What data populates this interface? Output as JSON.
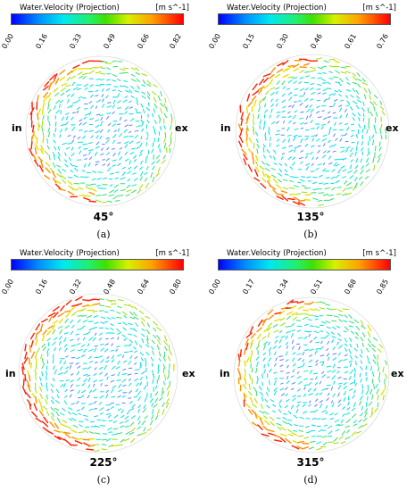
{
  "panels": [
    {
      "title": "Water.Velocity (Projection)",
      "units": "[m s^-1]",
      "ticks": [
        "0.00",
        "0.16",
        "0.33",
        "0.49",
        "0.66",
        "0.82"
      ],
      "inlet_label": "in",
      "exit_label": "ex",
      "angle_label": "45°",
      "sublabel": "(a)"
    },
    {
      "title": "Water.Velocity (Projection)",
      "units": "[m s^-1]",
      "ticks": [
        "0.00",
        "0.15",
        "0.30",
        "0.46",
        "0.61",
        "0.76"
      ],
      "inlet_label": "in",
      "exit_label": "ex",
      "angle_label": "135°",
      "sublabel": "(b)"
    },
    {
      "title": "Water.Velocity (Projection)",
      "units": "[m s^-1]",
      "ticks": [
        "0.00",
        "0.16",
        "0.32",
        "0.48",
        "0.64",
        "0.80"
      ],
      "inlet_label": "in",
      "exit_label": "ex",
      "angle_label": "225°",
      "sublabel": "(c)"
    },
    {
      "title": "Water.Velocity (Projection)",
      "units": "[m s^-1]",
      "ticks": [
        "0.00",
        "0.17",
        "0.34",
        "0.51",
        "0.68",
        "0.85"
      ],
      "inlet_label": "in",
      "exit_label": "ex",
      "angle_label": "315°",
      "sublabel": "(d)"
    }
  ],
  "colors": {
    "low": "#0000ff",
    "mid_low": "#00e8f0",
    "mid": "#40e000",
    "mid_high": "#ffa000",
    "high": "#ff0000"
  }
}
